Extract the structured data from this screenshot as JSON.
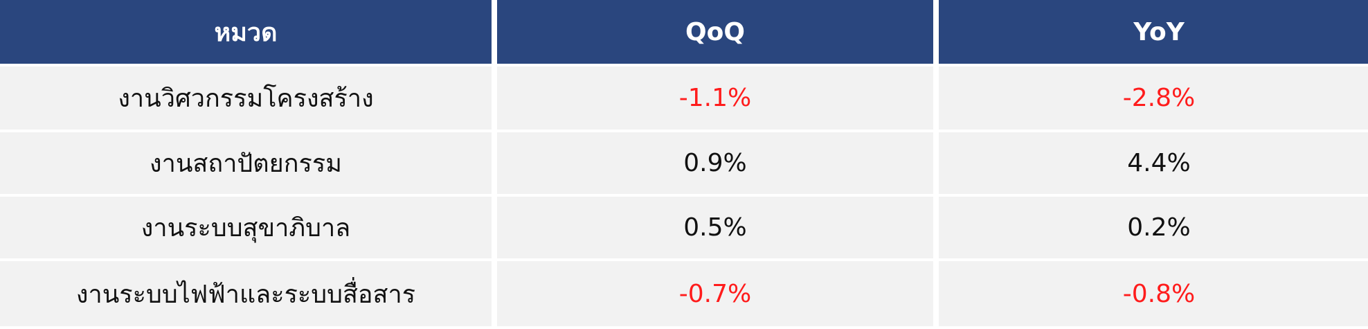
{
  "table": {
    "headers": [
      "หมวด",
      "QoQ",
      "YoY"
    ],
    "rows": [
      {
        "category": "งานวิศวกรรมโครงสร้าง",
        "qoq": "-1.1%",
        "yoy": "-2.8%"
      },
      {
        "category": "งานสถาปัตยกรรม",
        "qoq": "0.9%",
        "yoy": "4.4%"
      },
      {
        "category": "งานระบบสุขาภิบาล",
        "qoq": "0.5%",
        "yoy": "0.2%"
      },
      {
        "category": "งานระบบไฟฟ้าและระบบสื่อสาร",
        "qoq": "-0.7%",
        "yoy": "-0.8%"
      }
    ]
  },
  "colors": {
    "header_bg": "#2a467e",
    "header_text": "#ffffff",
    "row_bg": "#f2f2f2",
    "negative": "#ff1c1c",
    "text": "#111111"
  }
}
